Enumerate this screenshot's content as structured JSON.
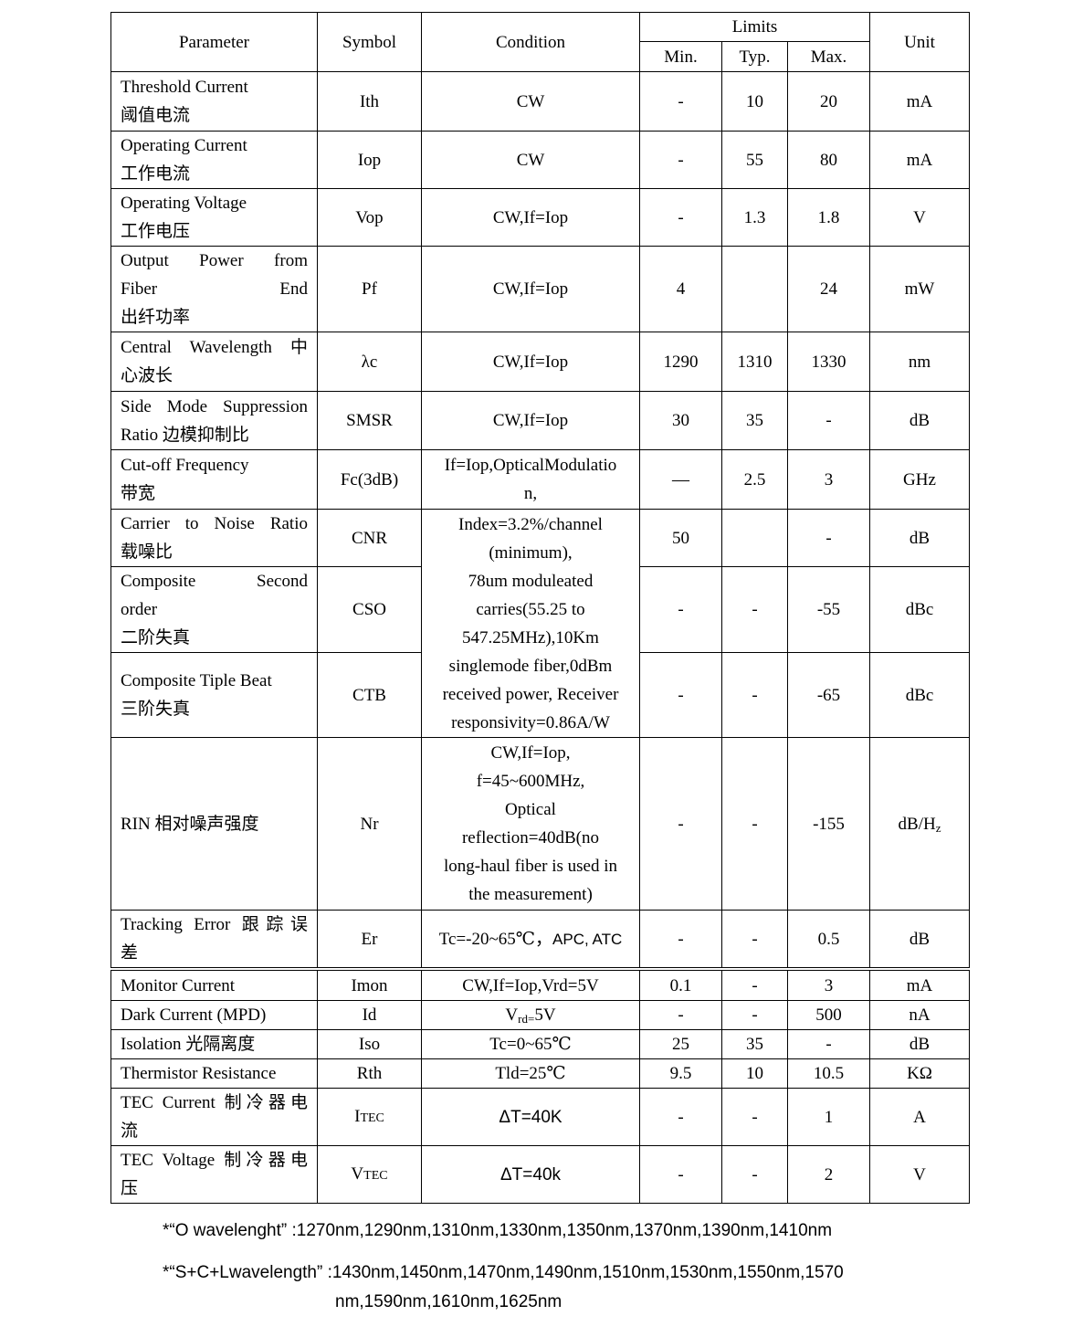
{
  "header": {
    "parameter": "Parameter",
    "symbol": "Symbol",
    "condition": "Condition",
    "limits": "Limits",
    "min": "Min.",
    "typ": "Typ.",
    "max": "Max.",
    "unit": "Unit"
  },
  "rows": [
    {
      "param": [
        "Threshold Current",
        "阈值电流"
      ],
      "symbol": "Ith",
      "condition": [
        "CW"
      ],
      "min": "-",
      "typ": "10",
      "max": "20",
      "unit": "mA"
    },
    {
      "param": [
        "Operating Current",
        "工作电流"
      ],
      "symbol": "Iop",
      "condition": [
        "CW"
      ],
      "min": "-",
      "typ": "55",
      "max": "80",
      "unit": "mA"
    },
    {
      "param": [
        "Operating Voltage",
        "工作电压"
      ],
      "symbol": "Vop",
      "condition": [
        "CW,If=Iop"
      ],
      "min": "-",
      "typ": "1.3",
      "max": "1.8",
      "unit": "V"
    },
    {
      "param": [
        "Output Power from",
        "Fiber End",
        "出纤功率"
      ],
      "symbol": "Pf",
      "condition": [
        "CW,If=Iop"
      ],
      "min": "4",
      "typ": "",
      "max": "24",
      "unit": "mW"
    },
    {
      "param": [
        "Central Wavelength 中",
        "心波长"
      ],
      "symbol": "λc",
      "condition": [
        "CW,If=Iop"
      ],
      "min": "1290",
      "typ": "1310",
      "max": "1330",
      "unit": "nm"
    },
    {
      "param": [
        "Side Mode Suppression",
        "Ratio 边模抑制比"
      ],
      "symbol": "SMSR",
      "condition": [
        "CW,If=Iop"
      ],
      "min": "30",
      "typ": "35",
      "max": "-",
      "unit": "dB"
    },
    {
      "param": [
        "Cut-off Frequency",
        "带宽"
      ],
      "symbol": "Fc(3dB)",
      "condition": [
        "If=Iop,OpticalModulatio",
        "n,"
      ],
      "min": "—",
      "typ": "2.5",
      "max": "3",
      "unit": "GHz"
    },
    {
      "param": [
        "Carrier to Noise Ratio",
        "载噪比"
      ],
      "symbol": "CNR",
      "condition": [
        "Index=3.2%/channel",
        "(minimum),",
        "78um moduleated",
        "carries(55.25 to",
        "547.25MHz),10Km",
        "singlemode fiber,0dBm",
        "received power, Receiver",
        "responsivity=0.86A/W"
      ],
      "min": "50",
      "typ": "",
      "max": "-",
      "unit": "dB"
    },
    {
      "param": [
        "Composite Second",
        "order",
        "二阶失真"
      ],
      "symbol": "CSO",
      "min": "-",
      "typ": "-",
      "max": "-55",
      "unit": "dBc"
    },
    {
      "param": [
        "Composite Tiple Beat",
        "三阶失真"
      ],
      "symbol": "CTB",
      "min": "-",
      "typ": "-",
      "max": "-65",
      "unit": "dBc"
    },
    {
      "param": [
        "RIN  相对噪声强度"
      ],
      "symbol": "Nr",
      "condition": [
        "CW,If=Iop,",
        "f=45~600MHz,",
        "Optical",
        "reflection=40dB(no",
        "long-haul fiber is used in",
        "the measurement)"
      ],
      "min": "-",
      "typ": "-",
      "max": "-155",
      "unit": "dB/Hz"
    },
    {
      "param": [
        "Tracking Error 跟踪误",
        "差"
      ],
      "symbol": "Er",
      "condition": [
        "Tc=-20~65℃，APC, ATC"
      ],
      "min": "-",
      "typ": "-",
      "max": "0.5",
      "unit": "dB"
    }
  ],
  "rows2": [
    {
      "param": [
        "Monitor Current"
      ],
      "symbol": "Imon",
      "condition": [
        "CW,If=Iop,Vrd=5V"
      ],
      "min": "0.1",
      "typ": "-",
      "max": "3",
      "unit": "mA"
    },
    {
      "param": [
        "Dark Current (MPD)"
      ],
      "symbol": "Id",
      "condition": [
        "Vrd=5V"
      ],
      "min": "-",
      "typ": "-",
      "max": "500",
      "unit": "nA"
    },
    {
      "param": [
        "Isolation 光隔离度"
      ],
      "symbol": "Iso",
      "condition": [
        "Tc=0~65℃"
      ],
      "min": "25",
      "typ": "35",
      "max": "-",
      "unit": "dB"
    },
    {
      "param": [
        "Thermistor Resistance"
      ],
      "symbol": "Rth",
      "condition": [
        "Tld=25℃"
      ],
      "min": "9.5",
      "typ": "10",
      "max": "10.5",
      "unit": "KΩ"
    },
    {
      "param": [
        "TEC Current 制冷器电",
        "流"
      ],
      "symbol": "ITEC",
      "condition": [
        "ΔT=40K"
      ],
      "min": "-",
      "typ": "-",
      "max": "1",
      "unit": "A"
    },
    {
      "param": [
        "TEC Voltage 制冷器电",
        "压"
      ],
      "symbol": "VTEC",
      "condition": [
        "ΔT=40k"
      ],
      "min": "-",
      "typ": "-",
      "max": "2",
      "unit": "V"
    }
  ],
  "notes": {
    "o_band": "*“O wavelenght” :1270nm,1290nm,1310nm,1330nm,1350nm,1370nm,1390nm,1410nm",
    "scl_band_line1": "*“S+C+Lwavelength”  :1430nm,1450nm,1470nm,1490nm,1510nm,1530nm,1550nm,1570",
    "scl_band_line2": "nm,1590nm,1610nm,1625nm"
  }
}
